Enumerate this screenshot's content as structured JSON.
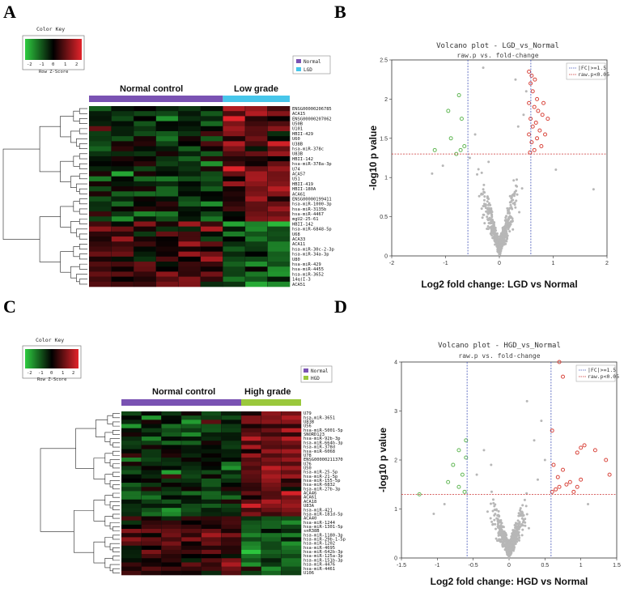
{
  "panels": {
    "A": "A",
    "B": "B",
    "C": "C",
    "D": "D"
  },
  "colors": {
    "normal": "#7a52b3",
    "lgd": "#47c6ea",
    "hgd": "#9ac83c",
    "red_pts": "#d9463d",
    "green_pts": "#63b857",
    "grey_pts": "#b7b7b7"
  },
  "chart_data": [
    {
      "panel": "A",
      "type": "heatmap",
      "color_key": {
        "title": "Color Key",
        "ticks": [
          "-2",
          "-1",
          "0",
          "1",
          "2"
        ],
        "xlabel": "Row Z-Score"
      },
      "legend": [
        "Normal",
        "LGD"
      ],
      "groups": [
        {
          "label": "Normal control",
          "columns": 6
        },
        {
          "label": "Low grade",
          "columns": 3
        }
      ],
      "rows": [
        "ENSG00000206785",
        "ACA15",
        "ENSG00000207062",
        "U50B",
        "U101",
        "HBII-429",
        "U60",
        "U38B",
        "hsa-miR-378c",
        "U83B",
        "HBII-142",
        "hsa-miR-378a-3p",
        "U74",
        "ACA57",
        "U51",
        "HBII-419",
        "HBII-180A",
        "ACA61",
        "ENSG00000199411",
        "hsa-miR-1000-3p",
        "hsa-miR-3135b",
        "hsa-miR-4467",
        "mgU2-25-61",
        "HBII-142",
        "hsa-miR-6848-5p",
        "U68",
        "ACA33",
        "ACA11",
        "hsa-miR-30c-2-3p",
        "hsa-miR-34a-3p",
        "U80",
        "hsa-miR-429",
        "hsa-miR-4455",
        "hsa-miR-3652",
        "14q(I-3",
        "ACA51"
      ]
    },
    {
      "panel": "B",
      "type": "scatter",
      "title": "Volcano plot - LGD_vs_Normal",
      "subtitle": "raw.p vs. fold-change",
      "xlabel": "Log2 fold change: LGD vs Normal",
      "ylabel": "-log10 p value",
      "xlim": [
        -2,
        2
      ],
      "ylim": [
        0,
        2.5
      ],
      "xticks": [
        -2,
        -1,
        0,
        1,
        2
      ],
      "yticks": [
        0,
        0.5,
        1,
        1.5,
        2,
        2.5
      ],
      "thresholds": {
        "fc": 0.585,
        "p": 1.3
      },
      "legend": [
        "|FC|>=1.5",
        "raw.p<0.05"
      ],
      "red_points": [
        [
          0.55,
          2.35
        ],
        [
          0.6,
          2.3
        ],
        [
          0.58,
          2.2
        ],
        [
          0.62,
          2.1
        ],
        [
          0.7,
          2.0
        ],
        [
          0.55,
          1.95
        ],
        [
          0.65,
          1.9
        ],
        [
          0.72,
          1.85
        ],
        [
          0.8,
          1.8
        ],
        [
          0.58,
          1.75
        ],
        [
          0.68,
          1.7
        ],
        [
          0.62,
          1.65
        ],
        [
          0.75,
          1.6
        ],
        [
          0.55,
          1.55
        ],
        [
          0.7,
          1.5
        ],
        [
          0.6,
          1.45
        ],
        [
          0.78,
          1.4
        ],
        [
          0.65,
          1.35
        ],
        [
          0.57,
          1.32
        ],
        [
          0.85,
          1.55
        ],
        [
          0.9,
          1.75
        ],
        [
          0.82,
          1.95
        ],
        [
          0.66,
          2.25
        ]
      ],
      "green_points": [
        [
          -0.75,
          2.05
        ],
        [
          -0.95,
          1.85
        ],
        [
          -0.7,
          1.75
        ],
        [
          -1.2,
          1.35
        ],
        [
          -0.72,
          1.35
        ],
        [
          -0.8,
          1.3
        ],
        [
          -0.65,
          1.4
        ],
        [
          -0.9,
          1.5
        ]
      ],
      "grey_points": [
        [
          0.3,
          2.25
        ],
        [
          -0.3,
          2.4
        ],
        [
          0.5,
          2.1
        ],
        [
          0.45,
          1.8
        ],
        [
          -0.45,
          1.55
        ],
        [
          0.35,
          1.65
        ],
        [
          -0.2,
          1.2
        ],
        [
          1.75,
          0.85
        ],
        [
          -1.25,
          1.05
        ],
        [
          -1.05,
          1.15
        ],
        [
          1.05,
          1.1
        ],
        [
          -0.55,
          1.25
        ]
      ]
    },
    {
      "panel": "C",
      "type": "heatmap",
      "color_key": {
        "title": "Color Key",
        "ticks": [
          "-2",
          "-1",
          "0",
          "1",
          "2"
        ],
        "xlabel": "Row Z-Score"
      },
      "legend": [
        "Normal",
        "HGD"
      ],
      "groups": [
        {
          "label": "Normal control",
          "columns": 6
        },
        {
          "label": "High grade",
          "columns": 3
        }
      ],
      "rows": [
        "U79",
        "hsa-miR-3651",
        "U83B",
        "U56",
        "hsa-miR-5001-5p",
        "SNORD123",
        "hsa-miR-92b-3p",
        "hsa-miR-664b-3p",
        "hsa-miR-378d",
        "hsa-miR-6068",
        "U78",
        "ENSG00000211370",
        "U76",
        "U50",
        "hsa-miR-25-5p",
        "hsa-miR-21-5p",
        "hsa-miR-155-5p",
        "hsa-miR-6832",
        "hsa-miR-27b-3p",
        "ACA46",
        "ACA61",
        "ACA18",
        "U83A",
        "hsa-miR-421",
        "hsa-miR-181d-5p",
        "ACA40",
        "hsa-miR-1244",
        "hsa-miR-1301-5p",
        "snR38B",
        "hsa-miR-1180-3p",
        "hsa-miR-29b-1-5p",
        "hsa-miR-1202",
        "hsa-miR-4695",
        "hsa-miR-642b-3p",
        "hsa-miR-125a-3p",
        "hsa-miR-151b-3p",
        "hsa-miR-4476",
        "hsa-miR-4461",
        "U106"
      ]
    },
    {
      "panel": "D",
      "type": "scatter",
      "title": "Volcano plot - HGD_vs_Normal",
      "subtitle": "raw.p vs. fold-change",
      "xlabel": "Log2 fold change: HGD vs Normal",
      "ylabel": "-log10 p value",
      "xlim": [
        -1.5,
        1.5
      ],
      "ylim": [
        0,
        4
      ],
      "xticks": [
        -1.5,
        -1.0,
        -0.5,
        0.0,
        0.5,
        1.0,
        1.5
      ],
      "yticks": [
        0,
        1,
        2,
        3,
        4
      ],
      "thresholds": {
        "fc": 0.585,
        "p": 1.3
      },
      "legend": [
        "|FC|>=1.5",
        "raw.p<0.05"
      ],
      "red_points": [
        [
          0.7,
          4.0
        ],
        [
          0.75,
          3.7
        ],
        [
          0.6,
          2.6
        ],
        [
          1.05,
          2.3
        ],
        [
          1.0,
          2.25
        ],
        [
          0.95,
          2.15
        ],
        [
          1.2,
          2.2
        ],
        [
          1.35,
          2.0
        ],
        [
          1.4,
          1.7
        ],
        [
          0.85,
          1.55
        ],
        [
          0.8,
          1.5
        ],
        [
          0.7,
          1.45
        ],
        [
          0.65,
          1.4
        ],
        [
          0.9,
          1.35
        ],
        [
          1.0,
          1.6
        ],
        [
          0.75,
          1.8
        ],
        [
          0.62,
          1.9
        ],
        [
          0.68,
          1.65
        ],
        [
          0.95,
          1.45
        ],
        [
          0.6,
          1.35
        ]
      ],
      "green_points": [
        [
          -0.6,
          2.4
        ],
        [
          -0.7,
          2.2
        ],
        [
          -0.6,
          2.05
        ],
        [
          -0.78,
          1.9
        ],
        [
          -0.65,
          1.7
        ],
        [
          -0.85,
          1.55
        ],
        [
          -0.7,
          1.45
        ],
        [
          -1.25,
          1.3
        ],
        [
          -0.62,
          1.35
        ]
      ],
      "grey_points": [
        [
          0.25,
          3.2
        ],
        [
          0.45,
          2.8
        ],
        [
          -0.35,
          2.2
        ],
        [
          0.35,
          2.4
        ],
        [
          -0.25,
          1.9
        ],
        [
          0.5,
          2.0
        ],
        [
          -0.45,
          1.7
        ],
        [
          0.4,
          1.6
        ],
        [
          -0.9,
          1.1
        ],
        [
          1.1,
          1.1
        ],
        [
          -1.05,
          0.9
        ]
      ]
    }
  ]
}
